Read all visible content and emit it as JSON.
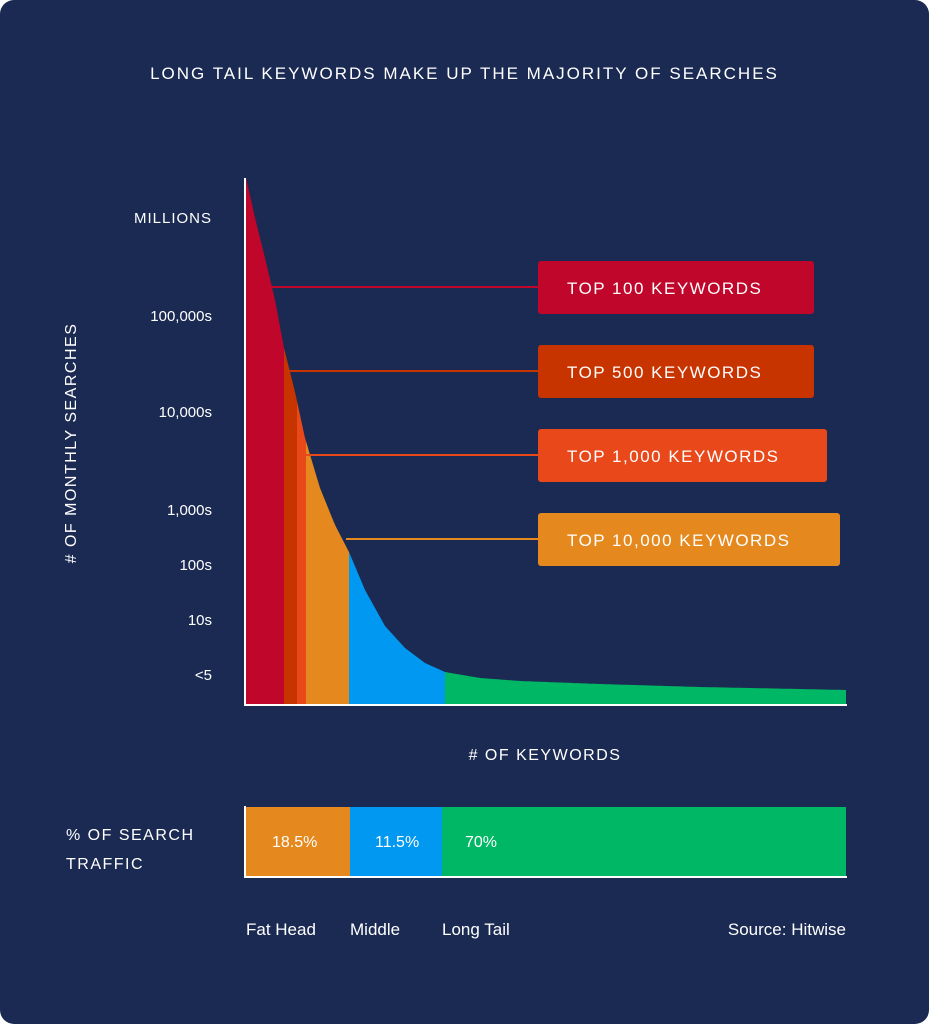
{
  "colors": {
    "background": "#1b2a52",
    "top100": "#c0062b",
    "top500": "#c83400",
    "top1000": "#e8481a",
    "top10000": "#e5891f",
    "middle": "#0098f0",
    "long_tail": "#00b765",
    "axis": "#ffffff"
  },
  "chart_data": {
    "type": "area",
    "title": "LONG TAIL KEYWORDS MAKE UP THE MAJORITY OF SEARCHES",
    "xlabel": "# OF KEYWORDS",
    "ylabel": "# OF MONTHLY SEARCHES",
    "y_tick_labels": [
      "MILLIONS",
      "100,000s",
      "10,000s",
      "1,000s",
      "100s",
      "10s",
      "<5"
    ],
    "segments": [
      {
        "name": "TOP 100 KEYWORDS",
        "color": "#c0062b"
      },
      {
        "name": "TOP 500 KEYWORDS",
        "color": "#c83400"
      },
      {
        "name": "TOP 1,000 KEYWORDS",
        "color": "#e8481a"
      },
      {
        "name": "TOP 10,000 KEYWORDS",
        "color": "#e5891f"
      },
      {
        "name": "Middle",
        "color": "#0098f0"
      },
      {
        "name": "Long Tail",
        "color": "#00b765"
      }
    ],
    "traffic": {
      "label_line1": "% OF SEARCH",
      "label_line2": "TRAFFIC",
      "categories": [
        "Fat Head",
        "Middle",
        "Long Tail"
      ],
      "values": [
        18.5,
        11.5,
        70
      ],
      "value_labels": [
        "18.5%",
        "11.5%",
        "70%"
      ],
      "colors": [
        "#e5891f",
        "#0098f0",
        "#00b765"
      ]
    },
    "source": "Source: Hitwise"
  }
}
